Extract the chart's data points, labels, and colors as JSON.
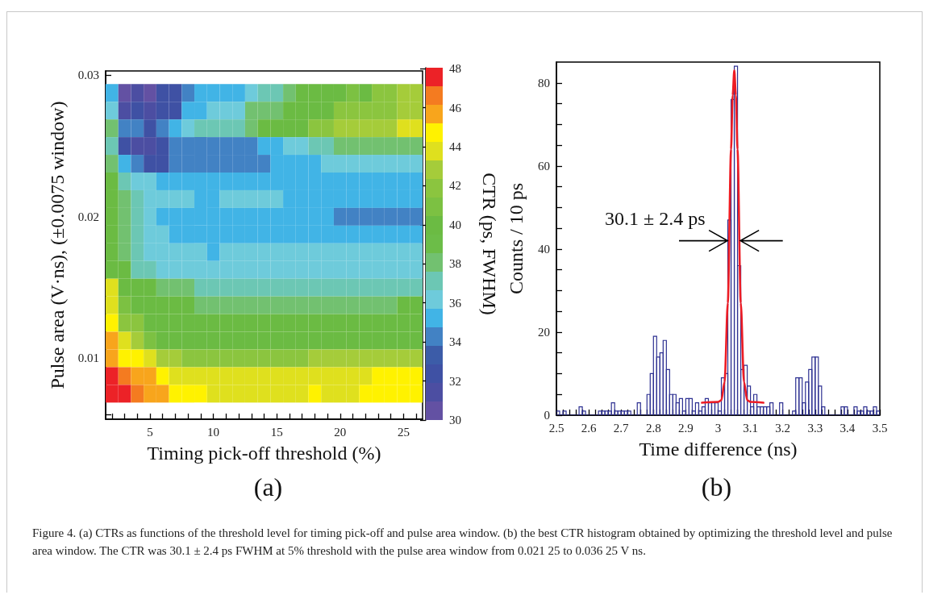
{
  "chart_data": [
    {
      "type": "heatmap",
      "title": "(a)",
      "xlabel": "Timing pick-off threshold (%)",
      "ylabel": "Pulse area (V·ns), (±0.0075 window)",
      "clabel": "CTR (ps, FWHM)",
      "x": [
        2,
        3,
        4,
        5,
        6,
        7,
        8,
        9,
        10,
        11,
        12,
        13,
        14,
        15,
        16,
        17,
        18,
        19,
        20,
        21,
        22,
        23,
        24,
        25,
        26
      ],
      "y": [
        0.02875,
        0.0275,
        0.02625,
        0.025,
        0.02375,
        0.0225,
        0.02125,
        0.02,
        0.01875,
        0.0175,
        0.01625,
        0.015,
        0.01375,
        0.0125,
        0.01125,
        0.01,
        0.00875,
        0.0075
      ],
      "cells": [
        [
          35.2,
          30.5,
          31.4,
          30.5,
          32.4,
          32.4,
          34.3,
          35.2,
          35.2,
          35.2,
          35.2,
          36.2,
          37.1,
          37.1,
          38.1,
          40,
          40,
          40,
          40,
          40.9,
          40,
          41.9,
          41.9,
          42.8,
          42.8
        ],
        [
          36.2,
          31.4,
          32.4,
          31.4,
          32.4,
          32.4,
          35.2,
          35.2,
          36.2,
          36.2,
          36.2,
          38.1,
          38.1,
          38.1,
          40,
          40,
          40,
          40,
          41.9,
          41.9,
          41.9,
          41.9,
          41.9,
          42.8,
          42.8
        ],
        [
          38.1,
          34.3,
          34.3,
          32.4,
          34.3,
          35.2,
          36.2,
          37.1,
          37.1,
          37.1,
          37.1,
          38.1,
          40,
          40,
          40,
          40,
          41.9,
          41.9,
          42.8,
          42.8,
          42.8,
          42.8,
          42.8,
          43.8,
          43.8
        ],
        [
          37.1,
          32.4,
          31.4,
          31.4,
          32.4,
          34.3,
          34.3,
          34.3,
          34.3,
          34.3,
          34.3,
          34.3,
          35.2,
          35.2,
          36.2,
          36.2,
          37.1,
          37.1,
          38.1,
          38.1,
          38.1,
          38.1,
          38.1,
          38.1,
          38.1
        ],
        [
          38.1,
          35.2,
          34.3,
          32.4,
          32.4,
          34.3,
          34.3,
          34.3,
          34.3,
          34.3,
          34.3,
          34.3,
          34.3,
          35.2,
          35.2,
          35.2,
          35.2,
          36.2,
          36.2,
          36.2,
          36.2,
          36.2,
          36.2,
          36.2,
          36.2
        ],
        [
          40,
          37.1,
          36.2,
          36.2,
          35.2,
          35.2,
          35.2,
          35.2,
          35.2,
          35.2,
          35.2,
          35.2,
          35.2,
          35.2,
          35.2,
          35.2,
          35.2,
          35.2,
          35.2,
          35.2,
          35.2,
          35.2,
          35.2,
          35.2,
          35.2
        ],
        [
          40,
          38.1,
          37.1,
          36.2,
          36.2,
          36.2,
          36.2,
          35.2,
          35.2,
          36.2,
          36.2,
          36.2,
          36.2,
          36.2,
          35.2,
          35.2,
          35.2,
          35.2,
          35.2,
          35.2,
          35.2,
          35.2,
          35.2,
          35.2,
          35.2
        ],
        [
          40,
          38.1,
          37.1,
          36.2,
          35.2,
          35.2,
          35.2,
          35.2,
          35.2,
          35.2,
          35.2,
          35.2,
          35.2,
          35.2,
          35.2,
          35.2,
          35.2,
          35.2,
          34.3,
          34.3,
          34.3,
          34.3,
          34.3,
          34.3,
          34.3
        ],
        [
          40,
          38.1,
          37.1,
          36.2,
          36.2,
          35.2,
          35.2,
          35.2,
          35.2,
          35.2,
          35.2,
          35.2,
          35.2,
          35.2,
          35.2,
          35.2,
          35.2,
          35.2,
          35.2,
          35.2,
          35.2,
          35.2,
          35.2,
          35.2,
          35.2
        ],
        [
          40,
          38.1,
          37.1,
          36.2,
          36.2,
          36.2,
          36.2,
          36.2,
          35.2,
          36.2,
          36.2,
          36.2,
          36.2,
          36.2,
          36.2,
          36.2,
          36.2,
          36.2,
          36.2,
          36.2,
          36.2,
          36.2,
          36.2,
          36.2,
          36.2
        ],
        [
          40,
          40,
          37.1,
          37.1,
          36.2,
          36.2,
          36.2,
          36.2,
          36.2,
          36.2,
          36.2,
          36.2,
          36.2,
          36.2,
          36.2,
          36.2,
          36.2,
          36.2,
          36.2,
          36.2,
          36.2,
          36.2,
          36.2,
          36.2,
          36.2
        ],
        [
          43.8,
          40,
          40,
          40,
          38.1,
          38.1,
          38.1,
          37.1,
          37.1,
          37.1,
          37.1,
          37.1,
          37.1,
          37.1,
          37.1,
          37.1,
          37.1,
          37.1,
          37.1,
          37.1,
          37.1,
          37.1,
          37.1,
          37.1,
          37.1
        ],
        [
          43.8,
          40.9,
          40,
          40,
          40,
          40,
          40,
          38.1,
          38.1,
          38.1,
          38.1,
          38.1,
          38.1,
          38.1,
          38.1,
          38.1,
          38.1,
          38.1,
          38.1,
          38.1,
          38.1,
          38.1,
          38.1,
          40,
          40
        ],
        [
          44.7,
          41.9,
          41.9,
          40,
          40,
          40,
          40,
          40,
          40,
          40,
          40,
          40,
          40,
          40,
          40,
          40,
          40,
          40,
          40,
          40,
          40,
          40,
          40,
          40,
          40
        ],
        [
          45.7,
          43.8,
          42.8,
          40.9,
          40,
          40,
          40,
          40,
          40,
          40,
          40,
          40,
          40,
          40,
          40,
          40,
          40,
          40,
          40,
          40,
          40,
          40,
          40,
          40,
          40
        ],
        [
          45.7,
          44.7,
          44.7,
          43.8,
          42.8,
          42.8,
          41.9,
          41.9,
          41.9,
          41.9,
          41.9,
          41.9,
          41.9,
          41.9,
          41.9,
          41.9,
          42.8,
          42.8,
          42.8,
          42.8,
          42.8,
          42.8,
          42.8,
          42.8,
          42.8
        ],
        [
          47.6,
          46.6,
          45.7,
          45.7,
          44.7,
          43.8,
          43.8,
          43.8,
          43.8,
          43.8,
          43.8,
          43.8,
          43.8,
          43.8,
          43.8,
          43.8,
          43.8,
          43.8,
          43.8,
          43.8,
          43.8,
          44.7,
          44.7,
          44.7,
          44.7
        ],
        [
          47.6,
          47.6,
          46.6,
          45.7,
          45.7,
          44.7,
          44.7,
          44.7,
          43.8,
          43.8,
          43.8,
          43.8,
          43.8,
          43.8,
          43.8,
          43.8,
          44.7,
          43.8,
          43.8,
          43.8,
          44.7,
          44.7,
          44.7,
          44.7,
          44.7
        ]
      ],
      "xlim": [
        1.5,
        26.5
      ],
      "xticks": [
        {
          "value": 2,
          "label": null
        },
        {
          "value": 3,
          "label": null
        },
        {
          "value": 4,
          "label": null
        },
        5,
        {
          "value": 6,
          "label": null
        },
        {
          "value": 7,
          "label": null
        },
        {
          "value": 8,
          "label": null
        },
        {
          "value": 9,
          "label": null
        },
        10,
        {
          "value": 11,
          "label": null
        },
        {
          "value": 12,
          "label": null
        },
        {
          "value": 13,
          "label": null
        },
        {
          "value": 14,
          "label": null
        },
        15,
        {
          "value": 16,
          "label": null
        },
        {
          "value": 17,
          "label": null
        },
        {
          "value": 18,
          "label": null
        },
        {
          "value": 19,
          "label": null
        },
        20,
        {
          "value": 21,
          "label": null
        },
        {
          "value": 22,
          "label": null
        },
        {
          "value": 23,
          "label": null
        },
        {
          "value": 24,
          "label": null
        },
        25,
        {
          "value": 26,
          "label": null
        }
      ],
      "ylim": [
        0.0057,
        0.0303
      ],
      "yticks": [
        {
          "value": 0.006,
          "label": null
        },
        {
          "value": 0.008,
          "label": null
        },
        0.01,
        {
          "value": 0.012,
          "label": null
        },
        {
          "value": 0.014,
          "label": null
        },
        {
          "value": 0.016,
          "label": null
        },
        {
          "value": 0.018,
          "label": null
        },
        0.02,
        {
          "value": 0.022,
          "label": null
        },
        {
          "value": 0.024,
          "label": null
        },
        {
          "value": 0.026,
          "label": null
        },
        {
          "value": 0.028,
          "label": null
        },
        0.03
      ],
      "clim": [
        30,
        48.05
      ],
      "cticks": [
        30,
        32,
        34,
        36,
        38,
        40,
        42,
        44,
        46,
        48
      ],
      "annotations": [
        "Figure 4. (a) CTRs as functions of the threshold level for timing pick-off and pulse area window. (b) the best CTR histogram obtained by optimizing the threshold level and pulse area window. The CTR was 30.1 ± 2.4 ps FWHM at 5% threshold with the pulse area window from 0.021 25 to 0.036 25 V ns."
      ]
    },
    {
      "type": "histogram",
      "title": "(b)",
      "xlabel": "Time difference (ns)",
      "ylabel": "Counts / 10 ps",
      "color": "#2e3192",
      "bins": [
        2.5,
        2.51,
        2.52,
        2.53,
        2.54,
        2.55,
        2.56,
        2.57,
        2.58,
        2.59,
        2.6,
        2.61,
        2.62,
        2.63,
        2.64,
        2.65,
        2.66,
        2.67,
        2.68,
        2.69,
        2.7,
        2.71,
        2.72,
        2.73,
        2.74,
        2.75,
        2.76,
        2.77,
        2.78,
        2.79,
        2.8,
        2.81,
        2.82,
        2.83,
        2.84,
        2.85,
        2.86,
        2.87,
        2.88,
        2.89,
        2.9,
        2.91,
        2.92,
        2.93,
        2.94,
        2.95,
        2.96,
        2.97,
        2.98,
        2.99,
        3,
        3.01,
        3.02,
        3.03,
        3.04,
        3.05,
        3.06,
        3.07,
        3.08,
        3.09,
        3.1,
        3.11,
        3.12,
        3.13,
        3.14,
        3.15,
        3.16,
        3.17,
        3.18,
        3.19,
        3.2,
        3.21,
        3.22,
        3.23,
        3.24,
        3.25,
        3.26,
        3.27,
        3.28,
        3.29,
        3.3,
        3.31,
        3.32,
        3.33,
        3.34,
        3.35,
        3.36,
        3.37,
        3.38,
        3.39,
        3.4,
        3.41,
        3.42,
        3.43,
        3.44,
        3.45,
        3.46,
        3.47,
        3.48,
        3.49,
        3.5
      ],
      "values": [
        1,
        0,
        1,
        0,
        0,
        0,
        0,
        2,
        1,
        0,
        0,
        0,
        0,
        1,
        1,
        1,
        1,
        3,
        1,
        1,
        1,
        1,
        1,
        0,
        0,
        3,
        0,
        0,
        5,
        10,
        19,
        14,
        15,
        18,
        11,
        5,
        5,
        3,
        4,
        1,
        4,
        4,
        1,
        3,
        1,
        2,
        4,
        3,
        3,
        3,
        1,
        9,
        10,
        47,
        76,
        84,
        36,
        11,
        12,
        7,
        2,
        5,
        2,
        2,
        2,
        2,
        3,
        0,
        0,
        3,
        0,
        0,
        0,
        1,
        9,
        9,
        3,
        8,
        11,
        14,
        14,
        7,
        2,
        0,
        0,
        0,
        0,
        0,
        2,
        2,
        0,
        0,
        2,
        1,
        1,
        2,
        1,
        1,
        2,
        1
      ],
      "series": [
        {
          "type": "line",
          "color": "#ed1c24",
          "x": [
            2.95,
            3,
            3.01,
            3.02,
            3.03,
            3.04,
            3.045,
            3.05,
            3.055,
            3.06,
            3.07,
            3.08,
            3.09,
            3.1,
            3.14
          ],
          "values": [
            3,
            3.2,
            3.6,
            8,
            27,
            64,
            77,
            83,
            77,
            64,
            27,
            8,
            3.6,
            3.2,
            3
          ]
        }
      ],
      "xlim": [
        2.5,
        3.5
      ],
      "xticks": [
        2.5,
        {
          "value": 2.52,
          "label": null
        },
        {
          "value": 2.54,
          "label": null
        },
        {
          "value": 2.56,
          "label": null
        },
        {
          "value": 2.58,
          "label": null
        },
        2.6,
        {
          "value": 2.62,
          "label": null
        },
        {
          "value": 2.64,
          "label": null
        },
        {
          "value": 2.66,
          "label": null
        },
        {
          "value": 2.68,
          "label": null
        },
        2.7,
        {
          "value": 2.72,
          "label": null
        },
        {
          "value": 2.74,
          "label": null
        },
        {
          "value": 2.76,
          "label": null
        },
        {
          "value": 2.78,
          "label": null
        },
        2.8,
        {
          "value": 2.82,
          "label": null
        },
        {
          "value": 2.84,
          "label": null
        },
        {
          "value": 2.86,
          "label": null
        },
        {
          "value": 2.88,
          "label": null
        },
        2.9,
        {
          "value": 2.92,
          "label": null
        },
        {
          "value": 2.94,
          "label": null
        },
        {
          "value": 2.96,
          "label": null
        },
        {
          "value": 2.98,
          "label": null
        },
        3,
        {
          "value": 3.02,
          "label": null
        },
        {
          "value": 3.04,
          "label": null
        },
        {
          "value": 3.06,
          "label": null
        },
        {
          "value": 3.08,
          "label": null
        },
        3.1,
        {
          "value": 3.12,
          "label": null
        },
        {
          "value": 3.14,
          "label": null
        },
        {
          "value": 3.16,
          "label": null
        },
        {
          "value": 3.18,
          "label": null
        },
        3.2,
        {
          "value": 3.22,
          "label": null
        },
        {
          "value": 3.24,
          "label": null
        },
        {
          "value": 3.26,
          "label": null
        },
        {
          "value": 3.28,
          "label": null
        },
        3.3,
        {
          "value": 3.32,
          "label": null
        },
        {
          "value": 3.34,
          "label": null
        },
        {
          "value": 3.36,
          "label": null
        },
        {
          "value": 3.38,
          "label": null
        },
        3.4,
        {
          "value": 3.42,
          "label": null
        },
        {
          "value": 3.44,
          "label": null
        },
        {
          "value": 3.46,
          "label": null
        },
        {
          "value": 3.48,
          "label": null
        },
        3.5
      ],
      "ylim": [
        0,
        85
      ],
      "yticks": [
        0,
        {
          "value": 5,
          "label": null
        },
        {
          "value": 10,
          "label": null
        },
        {
          "value": 15,
          "label": null
        },
        20,
        {
          "value": 25,
          "label": null
        },
        {
          "value": 30,
          "label": null
        },
        {
          "value": 35,
          "label": null
        },
        40,
        {
          "value": 45,
          "label": null
        },
        {
          "value": 50,
          "label": null
        },
        {
          "value": 55,
          "label": null
        },
        60,
        {
          "value": 65,
          "label": null
        },
        {
          "value": 70,
          "label": null
        },
        {
          "value": 75,
          "label": null
        },
        80
      ],
      "annotations": [
        {
          "text": "30.1 ± 2.4 ps",
          "x": 3.05,
          "y": 42
        }
      ]
    }
  ]
}
